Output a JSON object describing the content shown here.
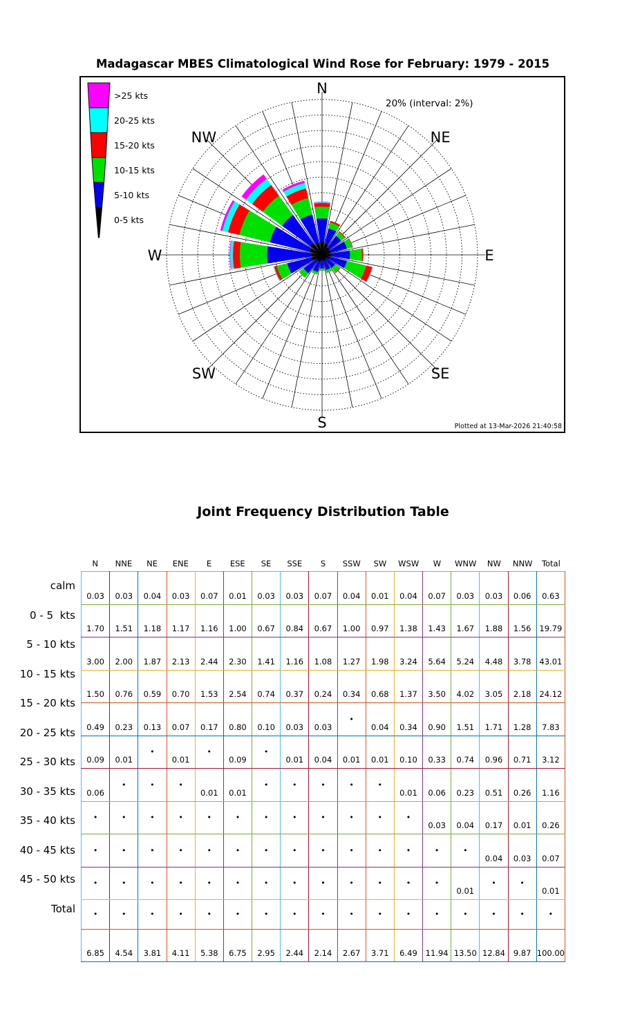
{
  "chart_data": {
    "type": "windrose",
    "title": "Madagascar MBES Climatological Wind Rose for February: 1979 - 2015",
    "radial_axis": {
      "max_pct": 20,
      "interval_pct": 2,
      "label": "20% (interval: 2%)"
    },
    "footnote": "Plotted at 13-Mar-2026 21:40:58",
    "compass_labels": [
      "N",
      "NE",
      "E",
      "SE",
      "S",
      "SW",
      "W",
      "NW"
    ],
    "directions": [
      "N",
      "NNE",
      "NE",
      "ENE",
      "E",
      "ESE",
      "SE",
      "SSE",
      "S",
      "SSW",
      "SW",
      "WSW",
      "W",
      "WNW",
      "NW",
      "NNW"
    ],
    "speed_bins": [
      {
        "label": "0-5 kts",
        "color": "#000000",
        "table_rows": [
          1
        ]
      },
      {
        "label": "5-10 kts",
        "color": "#0202F0",
        "table_rows": [
          2
        ]
      },
      {
        "label": "10-15 kts",
        "color": "#00E000",
        "table_rows": [
          3
        ]
      },
      {
        "label": "15-20 kts",
        "color": "#FF0000",
        "table_rows": [
          4
        ]
      },
      {
        "label": "20-25 kts",
        "color": "#00FFFF",
        "table_rows": [
          5
        ]
      },
      {
        "label": ">25 kts",
        "color": "#FF00FF",
        "table_rows": [
          6,
          7,
          8,
          9,
          10
        ]
      }
    ],
    "no_data_symbol": "•",
    "table": {
      "title": "Joint Frequency Distribution Table",
      "columns": [
        "N",
        "NNE",
        "NE",
        "ENE",
        "E",
        "ESE",
        "SE",
        "SSE",
        "S",
        "SSW",
        "SW",
        "WSW",
        "W",
        "WNW",
        "NW",
        "NNW",
        "Total"
      ],
      "row_labels": [
        "calm",
        "0 - 5  kts",
        "5 - 10 kts",
        "10 - 15 kts",
        "15 - 20 kts",
        "20 - 25 kts",
        "25 - 30 kts",
        "30 - 35 kts",
        "35 - 40 kts",
        "40 - 45 kts",
        "45 - 50 kts",
        "Total"
      ],
      "rows": [
        [
          "0.03",
          "0.03",
          "0.04",
          "0.03",
          "0.07",
          "0.01",
          "0.03",
          "0.03",
          "0.07",
          "0.04",
          "0.01",
          "0.04",
          "0.07",
          "0.03",
          "0.03",
          "0.06",
          "0.63"
        ],
        [
          "1.70",
          "1.51",
          "1.18",
          "1.17",
          "1.16",
          "1.00",
          "0.67",
          "0.84",
          "0.67",
          "1.00",
          "0.97",
          "1.38",
          "1.43",
          "1.67",
          "1.88",
          "1.56",
          "19.79"
        ],
        [
          "3.00",
          "2.00",
          "1.87",
          "2.13",
          "2.44",
          "2.30",
          "1.41",
          "1.16",
          "1.08",
          "1.27",
          "1.98",
          "3.24",
          "5.64",
          "5.24",
          "4.48",
          "3.78",
          "43.01"
        ],
        [
          "1.50",
          "0.76",
          "0.59",
          "0.70",
          "1.53",
          "2.54",
          "0.74",
          "0.37",
          "0.24",
          "0.34",
          "0.68",
          "1.37",
          "3.50",
          "4.02",
          "3.05",
          "2.18",
          "24.12"
        ],
        [
          "0.49",
          "0.23",
          "0.13",
          "0.07",
          "0.17",
          "0.80",
          "0.10",
          "0.03",
          "0.03",
          "•",
          "0.04",
          "0.34",
          "0.90",
          "1.51",
          "1.71",
          "1.28",
          "7.83"
        ],
        [
          "0.09",
          "0.01",
          "•",
          "0.01",
          "•",
          "0.09",
          "•",
          "0.01",
          "0.04",
          "0.01",
          "0.01",
          "0.10",
          "0.33",
          "0.74",
          "0.96",
          "0.71",
          "3.12"
        ],
        [
          "0.06",
          "•",
          "•",
          "•",
          "0.01",
          "0.01",
          "•",
          "•",
          "•",
          "•",
          "•",
          "0.01",
          "0.06",
          "0.23",
          "0.51",
          "0.26",
          "1.16"
        ],
        [
          "•",
          "•",
          "•",
          "•",
          "•",
          "•",
          "•",
          "•",
          "•",
          "•",
          "•",
          "•",
          "0.03",
          "0.04",
          "0.17",
          "0.01",
          "0.26"
        ],
        [
          "•",
          "•",
          "•",
          "•",
          "•",
          "•",
          "•",
          "•",
          "•",
          "•",
          "•",
          "•",
          "•",
          "•",
          "0.04",
          "0.03",
          "0.07"
        ],
        [
          "•",
          "•",
          "•",
          "•",
          "•",
          "•",
          "•",
          "•",
          "•",
          "•",
          "•",
          "•",
          "•",
          "0.01",
          "•",
          "•",
          "0.01"
        ],
        [
          "•",
          "•",
          "•",
          "•",
          "•",
          "•",
          "•",
          "•",
          "•",
          "•",
          "•",
          "•",
          "•",
          "•",
          "•",
          "•",
          "•"
        ],
        [
          "6.85",
          "4.54",
          "3.81",
          "4.11",
          "5.38",
          "6.75",
          "2.95",
          "2.44",
          "2.14",
          "2.67",
          "3.71",
          "6.49",
          "11.94",
          "13.50",
          "12.84",
          "9.87",
          "100.00"
        ]
      ],
      "grid_colors": {
        "vertical_cycle": [
          "#4DBEEE",
          "#A2142F",
          "#0072BD",
          "#D95319",
          "#EDB120",
          "#7E2F8E",
          "#77AC30"
        ],
        "horizontal_cycle": [
          "#4DBEEE",
          "#77AC30",
          "#7E2F8E",
          "#EDB120",
          "#D95319",
          "#0072BD",
          "#A2142F"
        ]
      }
    }
  }
}
